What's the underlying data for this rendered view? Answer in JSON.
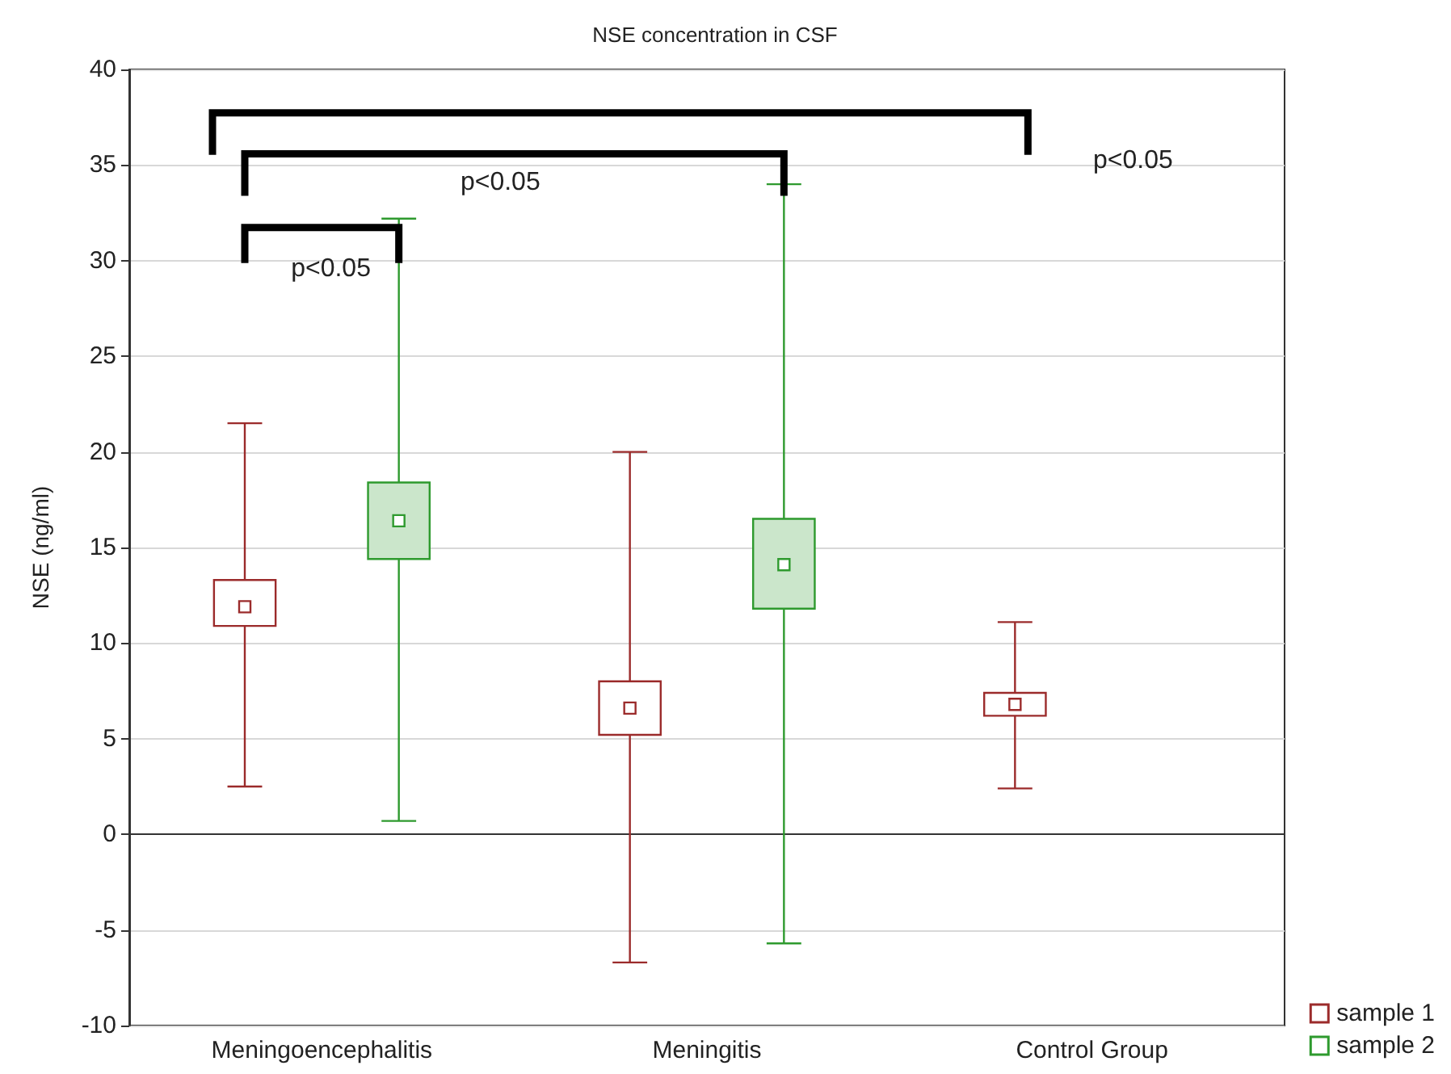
{
  "chart_data": {
    "type": "box",
    "title": "NSE concentration in CSF",
    "ylabel": "NSE (ng/ml)",
    "categories": [
      "Meningoencephalitis",
      "Meningitis",
      "Control Group"
    ],
    "series": [
      {
        "name": "sample 1",
        "color": "#9b2b2b",
        "boxes": [
          {
            "low": 2.5,
            "q1": 10.9,
            "median": 11.9,
            "q3": 13.3,
            "high": 21.5
          },
          {
            "low": -6.7,
            "q1": 5.2,
            "median": 6.6,
            "q3": 8.0,
            "high": 20.0
          },
          {
            "low": 2.4,
            "q1": 6.2,
            "median": 6.8,
            "q3": 7.4,
            "high": 11.1
          }
        ]
      },
      {
        "name": "sample 2",
        "color": "#2e9a2e",
        "boxes": [
          {
            "low": 0.7,
            "q1": 14.4,
            "median": 16.4,
            "q3": 18.4,
            "high": 32.2
          },
          {
            "low": -5.7,
            "q1": 11.8,
            "median": 14.1,
            "q3": 16.5,
            "high": 34.0
          },
          null
        ]
      }
    ],
    "ylim": [
      -10,
      40
    ],
    "yticks": [
      -10,
      -5,
      0,
      5,
      10,
      15,
      20,
      25,
      30,
      35,
      40
    ],
    "grid": "y",
    "legend": "bottom right",
    "marker": "square",
    "annotations": [
      "p<0.05",
      "p<0.05",
      "p<0.05"
    ]
  }
}
